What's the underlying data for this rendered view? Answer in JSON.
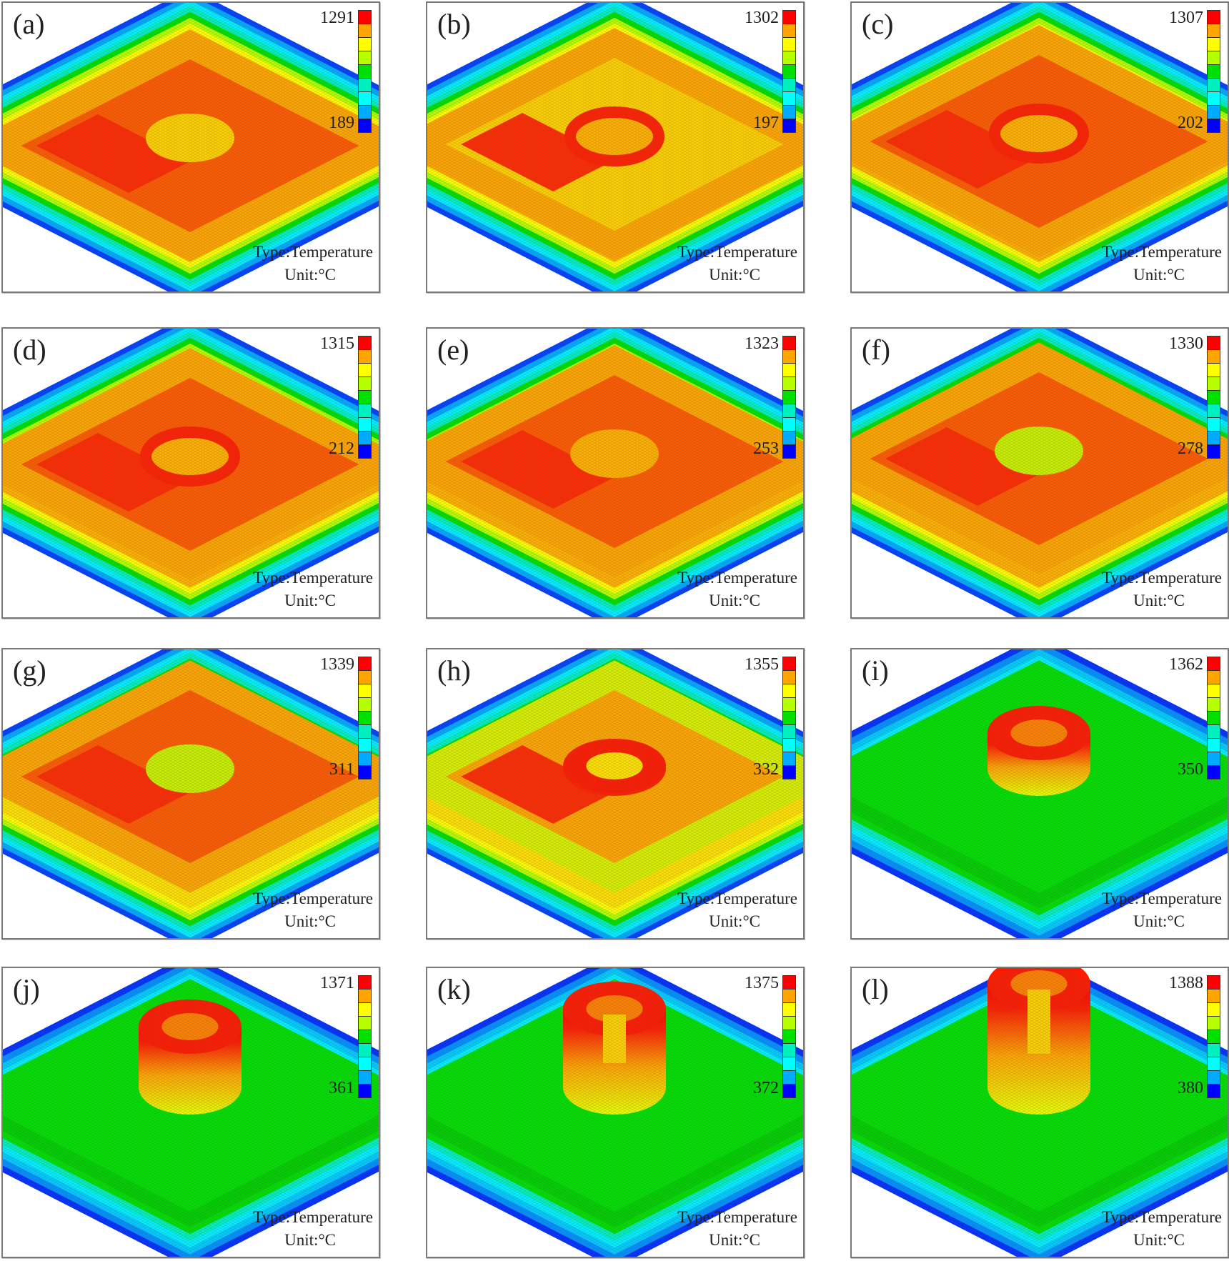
{
  "figure": {
    "type_label": "Type:Temperature",
    "unit_label": "Unit:°C"
  },
  "colormap": [
    "#ff0000",
    "#ffa500",
    "#ffff00",
    "#b5ff00",
    "#00e000",
    "#00f0c0",
    "#00ffff",
    "#00aaff",
    "#0000ff"
  ],
  "panels": [
    {
      "label": "(a)",
      "max": "1291",
      "min": "189"
    },
    {
      "label": "(b)",
      "max": "1302",
      "min": "197"
    },
    {
      "label": "(c)",
      "max": "1307",
      "min": "202"
    },
    {
      "label": "(d)",
      "max": "1315",
      "min": "212"
    },
    {
      "label": "(e)",
      "max": "1323",
      "min": "253"
    },
    {
      "label": "(f)",
      "max": "1330",
      "min": "278"
    },
    {
      "label": "(g)",
      "max": "1339",
      "min": "311"
    },
    {
      "label": "(h)",
      "max": "1355",
      "min": "332"
    },
    {
      "label": "(i)",
      "max": "1362",
      "min": "350"
    },
    {
      "label": "(j)",
      "max": "1371",
      "min": "361"
    },
    {
      "label": "(k)",
      "max": "1375",
      "min": "372"
    },
    {
      "label": "(l)",
      "max": "1388",
      "min": "380"
    }
  ],
  "chart_data": {
    "type": "heatmap",
    "title": "",
    "description": "Isometric temperature field snapshots of a deposited part on a substrate (12 stages a–l)",
    "legend": {
      "type": "Temperature",
      "unit": "°C",
      "levels": 9,
      "position": "top-right"
    },
    "series": [
      {
        "name": "(a)",
        "max": 1291,
        "min": 189,
        "pad_height": 0,
        "tower_height": 0
      },
      {
        "name": "(b)",
        "max": 1302,
        "min": 197,
        "pad_height": 2,
        "tower_height": 0
      },
      {
        "name": "(c)",
        "max": 1307,
        "min": 202,
        "pad_height": 6,
        "tower_height": 0
      },
      {
        "name": "(d)",
        "max": 1315,
        "min": 212,
        "pad_height": 10,
        "tower_height": 0
      },
      {
        "name": "(e)",
        "max": 1323,
        "min": 253,
        "pad_height": 14,
        "tower_height": 0
      },
      {
        "name": "(f)",
        "max": 1330,
        "min": 278,
        "pad_height": 18,
        "tower_height": 0
      },
      {
        "name": "(g)",
        "max": 1339,
        "min": 311,
        "pad_height": 22,
        "tower_height": 0
      },
      {
        "name": "(h)",
        "max": 1355,
        "min": 332,
        "pad_height": 22,
        "tower_height": 4
      },
      {
        "name": "(i)",
        "max": 1362,
        "min": 350,
        "pad_height": 22,
        "tower_height": 50
      },
      {
        "name": "(j)",
        "max": 1371,
        "min": 361,
        "pad_height": 22,
        "tower_height": 85
      },
      {
        "name": "(k)",
        "max": 1375,
        "min": 372,
        "pad_height": 22,
        "tower_height": 110
      },
      {
        "name": "(l)",
        "max": 1388,
        "min": 380,
        "pad_height": 22,
        "tower_height": 145
      }
    ]
  }
}
